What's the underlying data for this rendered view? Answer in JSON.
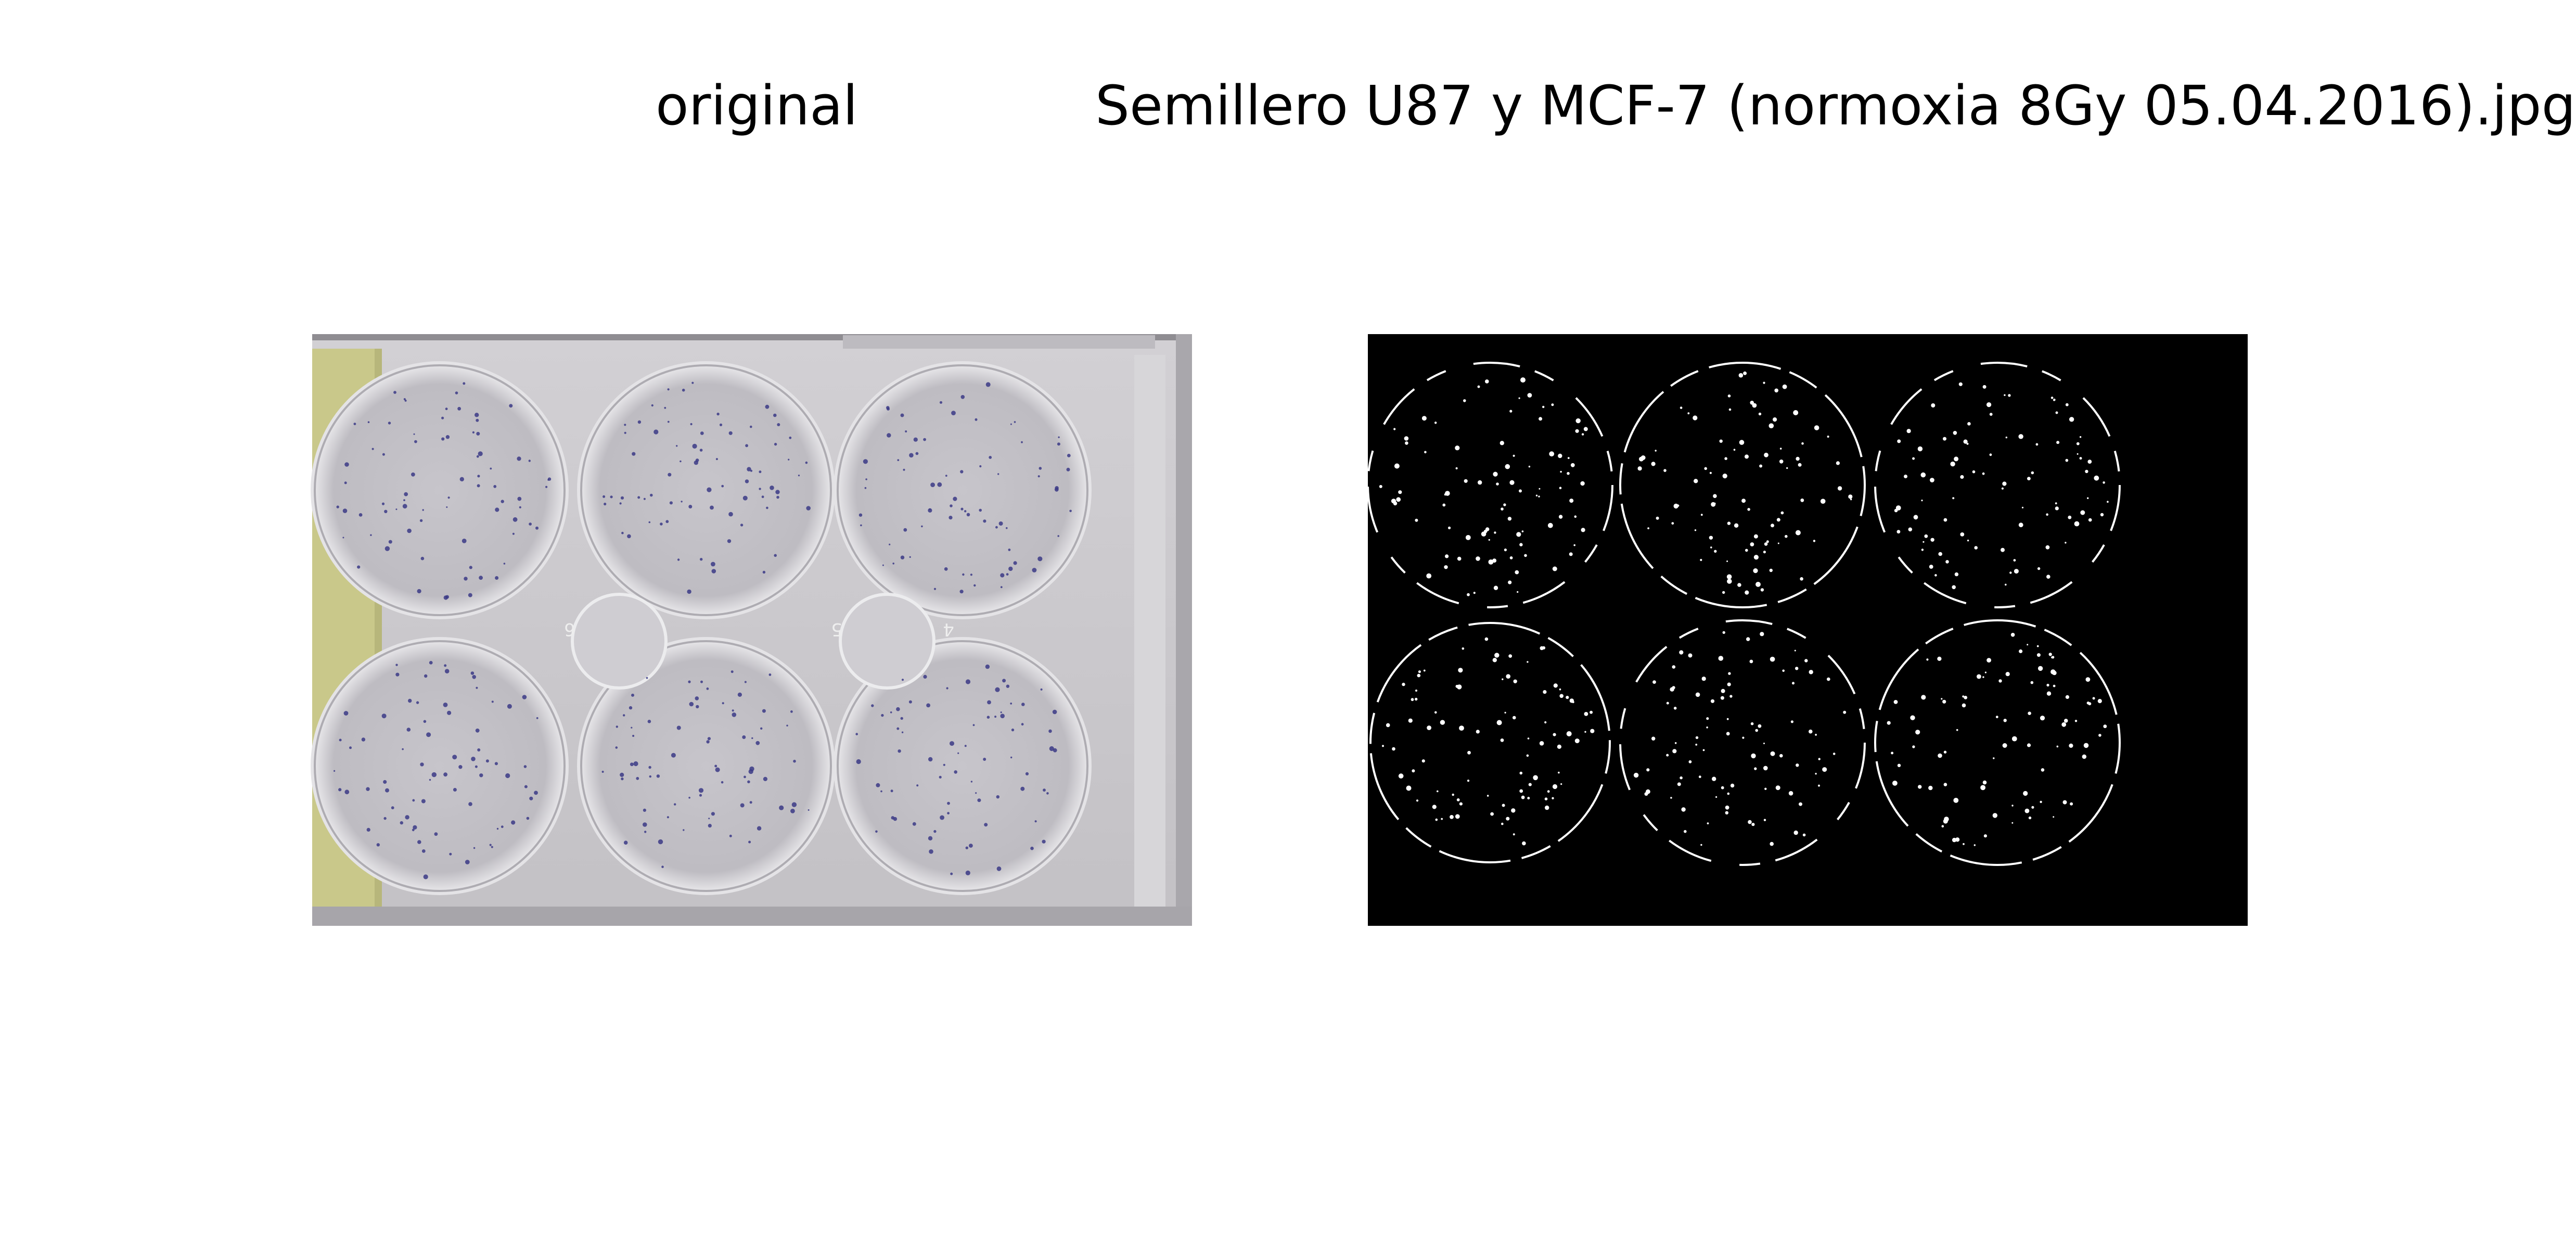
{
  "panels": {
    "left": {
      "title": "original"
    },
    "right": {
      "title": "Semillero U87 y MCF-7 (normoxia 8Gy 05.04.2016).jpg"
    }
  },
  "plate": {
    "wells": 6,
    "well_numbers": [
      "6",
      "5",
      "4"
    ]
  },
  "colors": {
    "plate_bg": "#c9c7cb",
    "plate_frame": "#b9b7bb",
    "yellow_strip": "#c9c88a",
    "colony": "#3b3a86",
    "mask_bg": "#000000",
    "mask_fg": "#ffffff"
  }
}
